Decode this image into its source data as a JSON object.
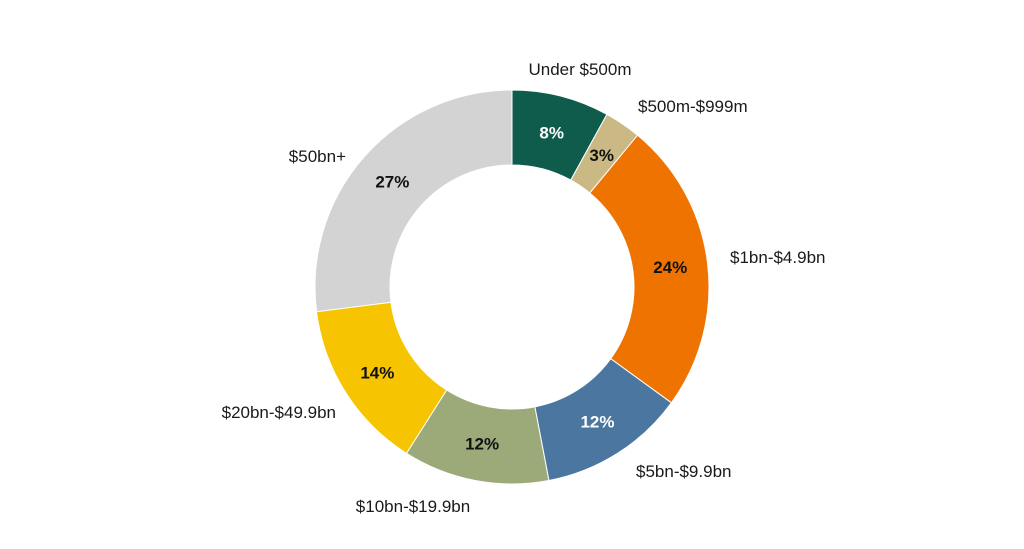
{
  "chart_data": {
    "type": "pie",
    "donut": true,
    "categories": [
      "Under $500m",
      "$500m-$999m",
      "$1bn-$4.9bn",
      "$5bn-$9.9bn",
      "$10bn-$19.9bn",
      "$20bn-$49.9bn",
      "$50bn+"
    ],
    "values": [
      8,
      3,
      24,
      12,
      12,
      14,
      27
    ],
    "value_labels": [
      "8%",
      "3%",
      "24%",
      "12%",
      "12%",
      "14%",
      "27%"
    ],
    "colors": [
      "#0f5c4c",
      "#cbb985",
      "#ee7300",
      "#4a76a0",
      "#9caa7a",
      "#f6c400",
      "#d3d3d3"
    ],
    "label_colors": [
      "#ffffff",
      "#111111",
      "#111111",
      "#ffffff",
      "#111111",
      "#111111",
      "#111111"
    ],
    "title": "",
    "legend": "none"
  }
}
